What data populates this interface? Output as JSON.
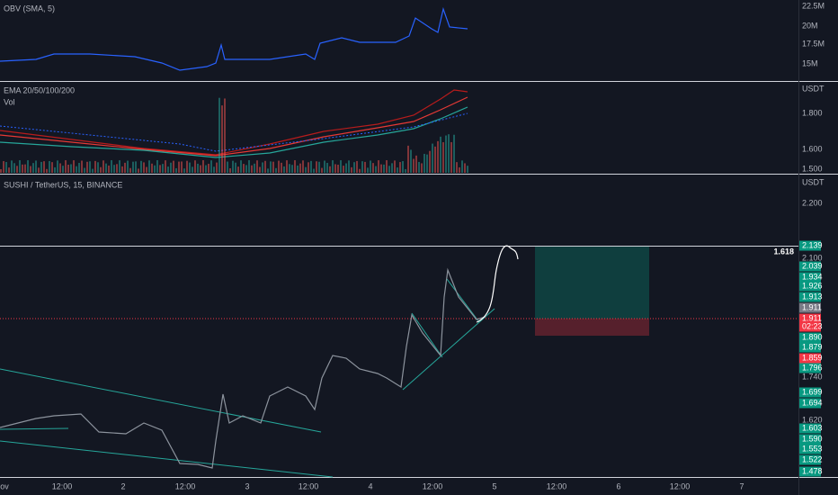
{
  "panels": {
    "obv": {
      "title": "OBV (SMA, 5)",
      "axis": [
        "22.5M",
        "20M",
        "17.5M",
        "15M"
      ]
    },
    "ema": {
      "title": "EMA 20/50/100/200",
      "subtitle": "Vol",
      "axis": [
        "USDT",
        "1.800",
        "1.600",
        "1.500"
      ]
    },
    "main": {
      "title": "SUSHI / TetherUS, 15, BINANCE",
      "axis": [
        "USDT",
        "2.200",
        "2.100",
        "1.740",
        "1.620"
      ],
      "fib_label": "1.618"
    }
  },
  "price_tags": [
    {
      "text": "2.139",
      "color": "#089981"
    },
    {
      "text": "2.039",
      "color": "#089981"
    },
    {
      "text": "1.934",
      "color": "#089981"
    },
    {
      "text": "1.926",
      "color": "#089981"
    },
    {
      "text": "1.913",
      "color": "#089981"
    },
    {
      "text": "1.911",
      "color": "#787b86"
    },
    {
      "text": "1.911",
      "color": "#f23645"
    },
    {
      "text": "1.890",
      "color": "#089981"
    },
    {
      "text": "1.879",
      "color": "#089981"
    },
    {
      "text": "1.859",
      "color": "#f23645"
    },
    {
      "text": "1.796",
      "color": "#089981"
    },
    {
      "text": "1.699",
      "color": "#089981"
    },
    {
      "text": "1.694",
      "color": "#089981"
    },
    {
      "text": "1.603",
      "color": "#089981"
    },
    {
      "text": "1.590",
      "color": "#089981"
    },
    {
      "text": "1.553",
      "color": "#089981"
    },
    {
      "text": "1.522",
      "color": "#089981"
    },
    {
      "text": "1.478",
      "color": "#089981"
    }
  ],
  "countdown": "02:23",
  "time_axis": [
    "ov",
    "12:00",
    "2",
    "12:00",
    "3",
    "12:00",
    "4",
    "12:00",
    "5",
    "12:00",
    "6",
    "12:00",
    "7"
  ]
}
